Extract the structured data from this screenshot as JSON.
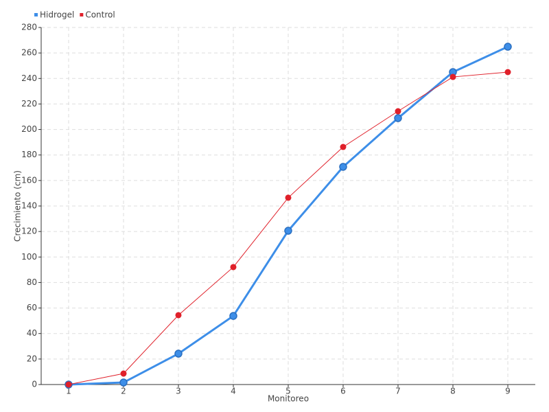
{
  "chart_data": {
    "type": "line",
    "x_label": "Monitoreo",
    "y_label": "Crecimiento (cm)",
    "categories": [
      "1",
      "2",
      "3",
      "4",
      "5",
      "6",
      "7",
      "8",
      "9"
    ],
    "series": [
      {
        "name": "Hidrogel",
        "color": "#3d8ee8",
        "values": [
          0,
          1.6,
          24.2,
          53.8,
          120.6,
          170.7,
          208.9,
          245,
          264.9
        ]
      },
      {
        "name": "Control",
        "color": "#e0202a",
        "values": [
          0,
          8.6,
          54.4,
          92.1,
          146.5,
          186.3,
          214.3,
          241.2,
          245
        ]
      }
    ],
    "ylim": [
      0,
      280
    ],
    "yticks": [
      0,
      20,
      40,
      60,
      80,
      100,
      120,
      140,
      160,
      180,
      200,
      220,
      240,
      260,
      280
    ],
    "grid": true,
    "legend": "top-left"
  }
}
